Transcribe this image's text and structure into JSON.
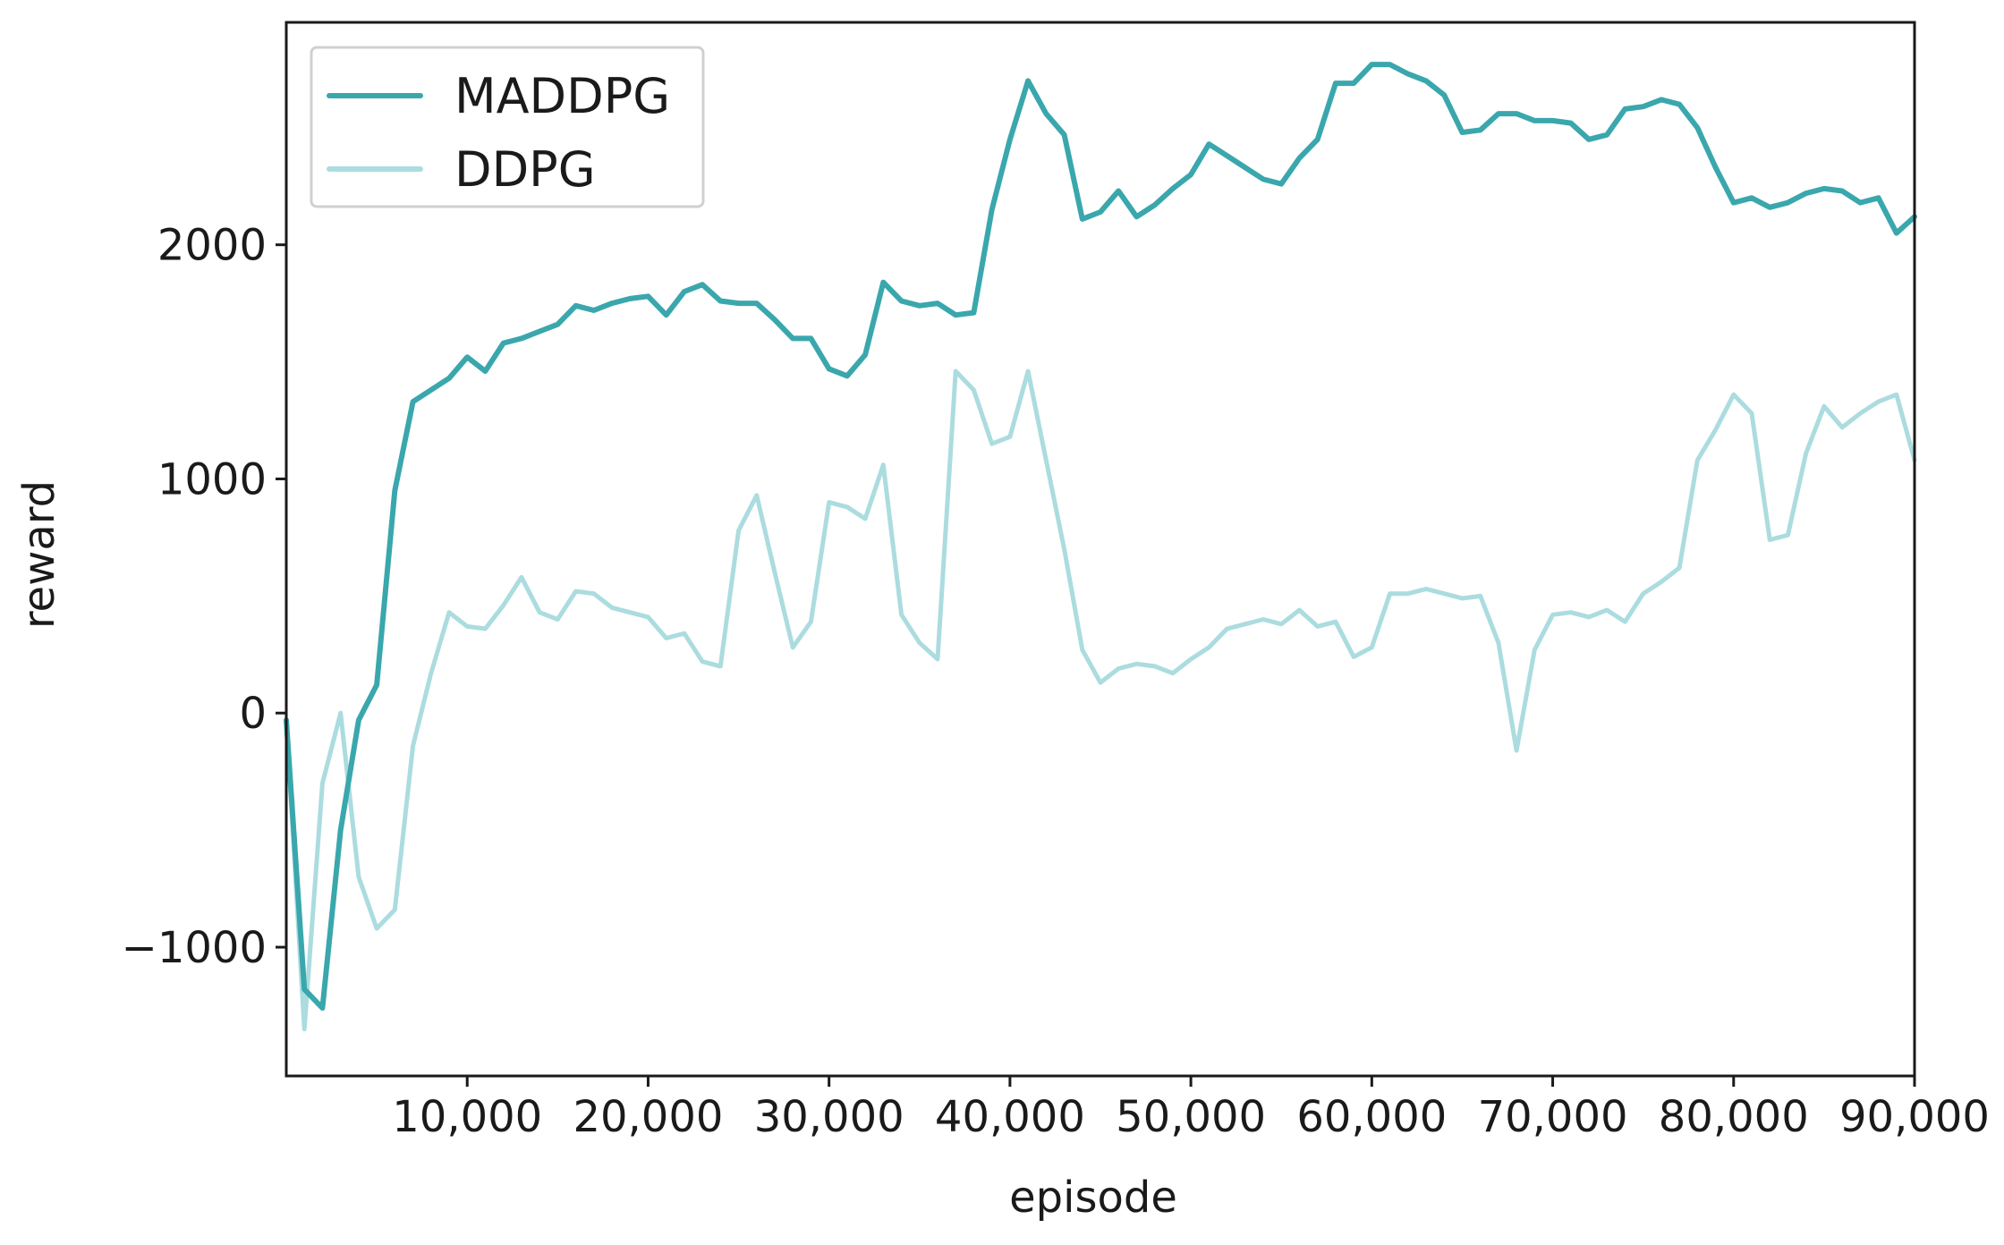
{
  "chart_data": {
    "type": "line",
    "title": "",
    "xlabel": "episode",
    "ylabel": "reward",
    "xlim": [
      0,
      90000
    ],
    "ylim": [
      -1550,
      2950
    ],
    "x_ticks": [
      10000,
      20000,
      30000,
      40000,
      50000,
      60000,
      70000,
      80000,
      90000
    ],
    "x_tick_labels": [
      "10,000",
      "20,000",
      "30,000",
      "40,000",
      "50,000",
      "60,000",
      "70,000",
      "80,000",
      "90,000"
    ],
    "y_ticks": [
      -1000,
      0,
      1000,
      2000
    ],
    "y_tick_labels": [
      "−1000",
      "0",
      "1000",
      "2000"
    ],
    "grid": false,
    "legend": "top-left",
    "x": [
      0,
      1000,
      2000,
      3000,
      4000,
      5000,
      6000,
      7000,
      8000,
      9000,
      10000,
      11000,
      12000,
      13000,
      14000,
      15000,
      16000,
      17000,
      18000,
      19000,
      20000,
      21000,
      22000,
      23000,
      24000,
      25000,
      26000,
      27000,
      28000,
      29000,
      30000,
      31000,
      32000,
      33000,
      34000,
      35000,
      36000,
      37000,
      38000,
      39000,
      40000,
      41000,
      42000,
      43000,
      44000,
      45000,
      46000,
      47000,
      48000,
      49000,
      50000,
      51000,
      52000,
      53000,
      54000,
      55000,
      56000,
      57000,
      58000,
      59000,
      60000,
      61000,
      62000,
      63000,
      64000,
      65000,
      66000,
      67000,
      68000,
      69000,
      70000,
      71000,
      72000,
      73000,
      74000,
      75000,
      76000,
      77000,
      78000,
      79000,
      80000,
      81000,
      82000,
      83000,
      84000,
      85000,
      86000,
      87000,
      88000,
      89000,
      90000
    ],
    "series": [
      {
        "name": "MADDPG",
        "color": "#3aa7ad",
        "values": [
          -30,
          -1180,
          -1260,
          -500,
          -30,
          120,
          950,
          1330,
          1380,
          1430,
          1520,
          1460,
          1580,
          1600,
          1630,
          1660,
          1740,
          1720,
          1750,
          1770,
          1780,
          1700,
          1800,
          1830,
          1760,
          1750,
          1750,
          1680,
          1600,
          1600,
          1470,
          1440,
          1530,
          1840,
          1760,
          1740,
          1750,
          1700,
          1710,
          2150,
          2450,
          2700,
          2560,
          2470,
          2110,
          2140,
          2230,
          2120,
          2170,
          2240,
          2300,
          2430,
          2380,
          2330,
          2280,
          2260,
          2370,
          2450,
          2690,
          2690,
          2770,
          2770,
          2730,
          2700,
          2640,
          2480,
          2490,
          2560,
          2560,
          2530,
          2530,
          2520,
          2450,
          2470,
          2580,
          2590,
          2620,
          2600,
          2500,
          2330,
          2180,
          2200,
          2160,
          2180,
          2220,
          2240,
          2230,
          2180,
          2200,
          2050,
          2120
        ]
      },
      {
        "name": "DDPG",
        "color": "#abdcdf",
        "values": [
          -30,
          -1350,
          -300,
          0,
          -700,
          -920,
          -840,
          -140,
          170,
          430,
          370,
          360,
          460,
          580,
          430,
          400,
          520,
          510,
          450,
          430,
          410,
          320,
          340,
          220,
          200,
          780,
          930,
          600,
          280,
          390,
          900,
          880,
          830,
          1060,
          420,
          300,
          230,
          1460,
          1380,
          1150,
          1180,
          1460,
          1080,
          700,
          270,
          130,
          190,
          210,
          200,
          170,
          230,
          280,
          360,
          380,
          400,
          380,
          440,
          370,
          390,
          240,
          280,
          510,
          510,
          530,
          510,
          490,
          500,
          300,
          -160,
          270,
          420,
          430,
          410,
          440,
          390,
          510,
          560,
          620,
          1080,
          1210,
          1360,
          1280,
          740,
          760,
          1110,
          1310,
          1220,
          1280,
          1330,
          1360,
          1080
        ]
      }
    ]
  }
}
